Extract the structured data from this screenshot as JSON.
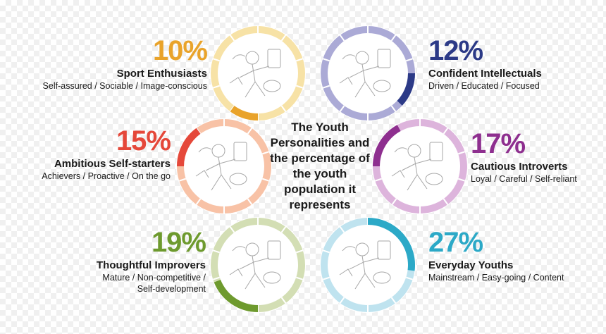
{
  "chart_data": {
    "type": "pie",
    "title": "The Youth Personalities and the percentage of the youth population it represents",
    "segments": [
      {
        "percent_label": "10%",
        "value": 10,
        "name": "Sport Enthusiasts",
        "traits": [
          "Self-assured / Sociable / Image-conscious"
        ],
        "color": "#E9A32A",
        "light": "#F7E2A6",
        "icon": "sports-gear-illustration"
      },
      {
        "percent_label": "12%",
        "value": 12,
        "name": "Confident Intellectuals",
        "traits": [
          "Driven / Educated / Focused"
        ],
        "color": "#2C3A87",
        "light": "#ABAAD6",
        "icon": "gadgets-illustration"
      },
      {
        "percent_label": "15%",
        "value": 15,
        "name": "Ambitious Self-starters",
        "traits": [
          "Achievers / Proactive / On the go"
        ],
        "color": "#E5483A",
        "light": "#F8C2A6",
        "icon": "cyclist-illustration"
      },
      {
        "percent_label": "17%",
        "value": 17,
        "name": "Cautious Introverts",
        "traits": [
          "Loyal / Careful / Self-reliant"
        ],
        "color": "#8E2F8F",
        "light": "#DDB4DC",
        "icon": "reading-illustration"
      },
      {
        "percent_label": "19%",
        "value": 19,
        "name": "Thoughtful Improvers",
        "traits": [
          "Mature / Non-competitive /",
          "Self-development"
        ],
        "color": "#6E9A2E",
        "light": "#D3DEB4",
        "icon": "thinker-illustration"
      },
      {
        "percent_label": "27%",
        "value": 27,
        "name": "Everyday Youths",
        "traits": [
          "Mainstream / Easy-going / Content"
        ],
        "color": "#2CA9C7",
        "light": "#BFE3EF",
        "icon": "everyday-items-illustration"
      }
    ]
  },
  "center_title": "The Youth Personalities and the percentage of the youth population it represents"
}
